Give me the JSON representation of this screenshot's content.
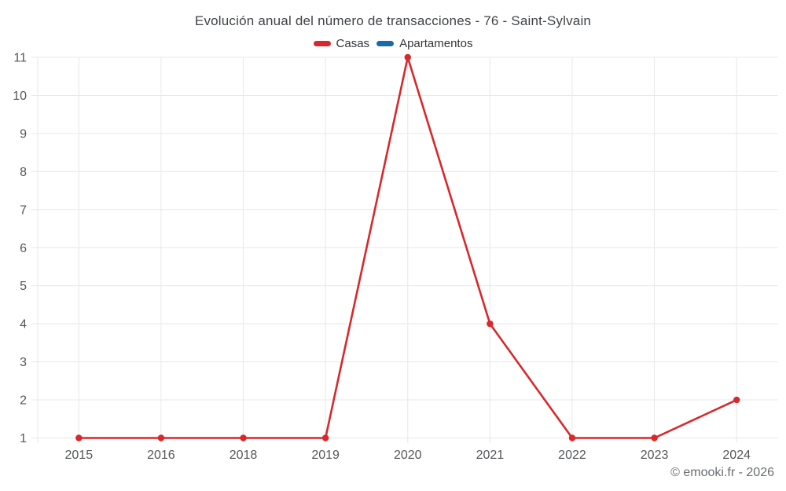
{
  "chart": {
    "title": "Evolución anual del número de transacciones - 76 - Saint-Sylvain",
    "copyright": "© emooki.fr - 2026"
  },
  "legend": {
    "items": [
      {
        "label": "Casas",
        "color": "#d8282c"
      },
      {
        "label": "Apartamentos",
        "color": "#1a6ba3"
      }
    ]
  },
  "chart_data": {
    "type": "line",
    "title": "Evolución anual del número de transacciones - 76 - Saint-Sylvain",
    "categories": [
      "2015",
      "2016",
      "2018",
      "2019",
      "2020",
      "2021",
      "2022",
      "2023",
      "2024"
    ],
    "series": [
      {
        "name": "Casas",
        "color": "#d8282c",
        "values": [
          1,
          1,
          1,
          1,
          11,
          4,
          1,
          1,
          2
        ]
      },
      {
        "name": "Apartamentos",
        "color": "#1a6ba3",
        "values": []
      }
    ],
    "xlabel": "",
    "ylabel": "",
    "ylim": [
      1,
      11
    ],
    "yticks": [
      1,
      2,
      3,
      4,
      5,
      6,
      7,
      8,
      9,
      10,
      11
    ],
    "grid": true,
    "legend_position": "top",
    "colors": {
      "grid": "#e8e8e8",
      "tick_label": "#55575a",
      "title": "#404348",
      "copyright": "#6a6e72"
    }
  }
}
